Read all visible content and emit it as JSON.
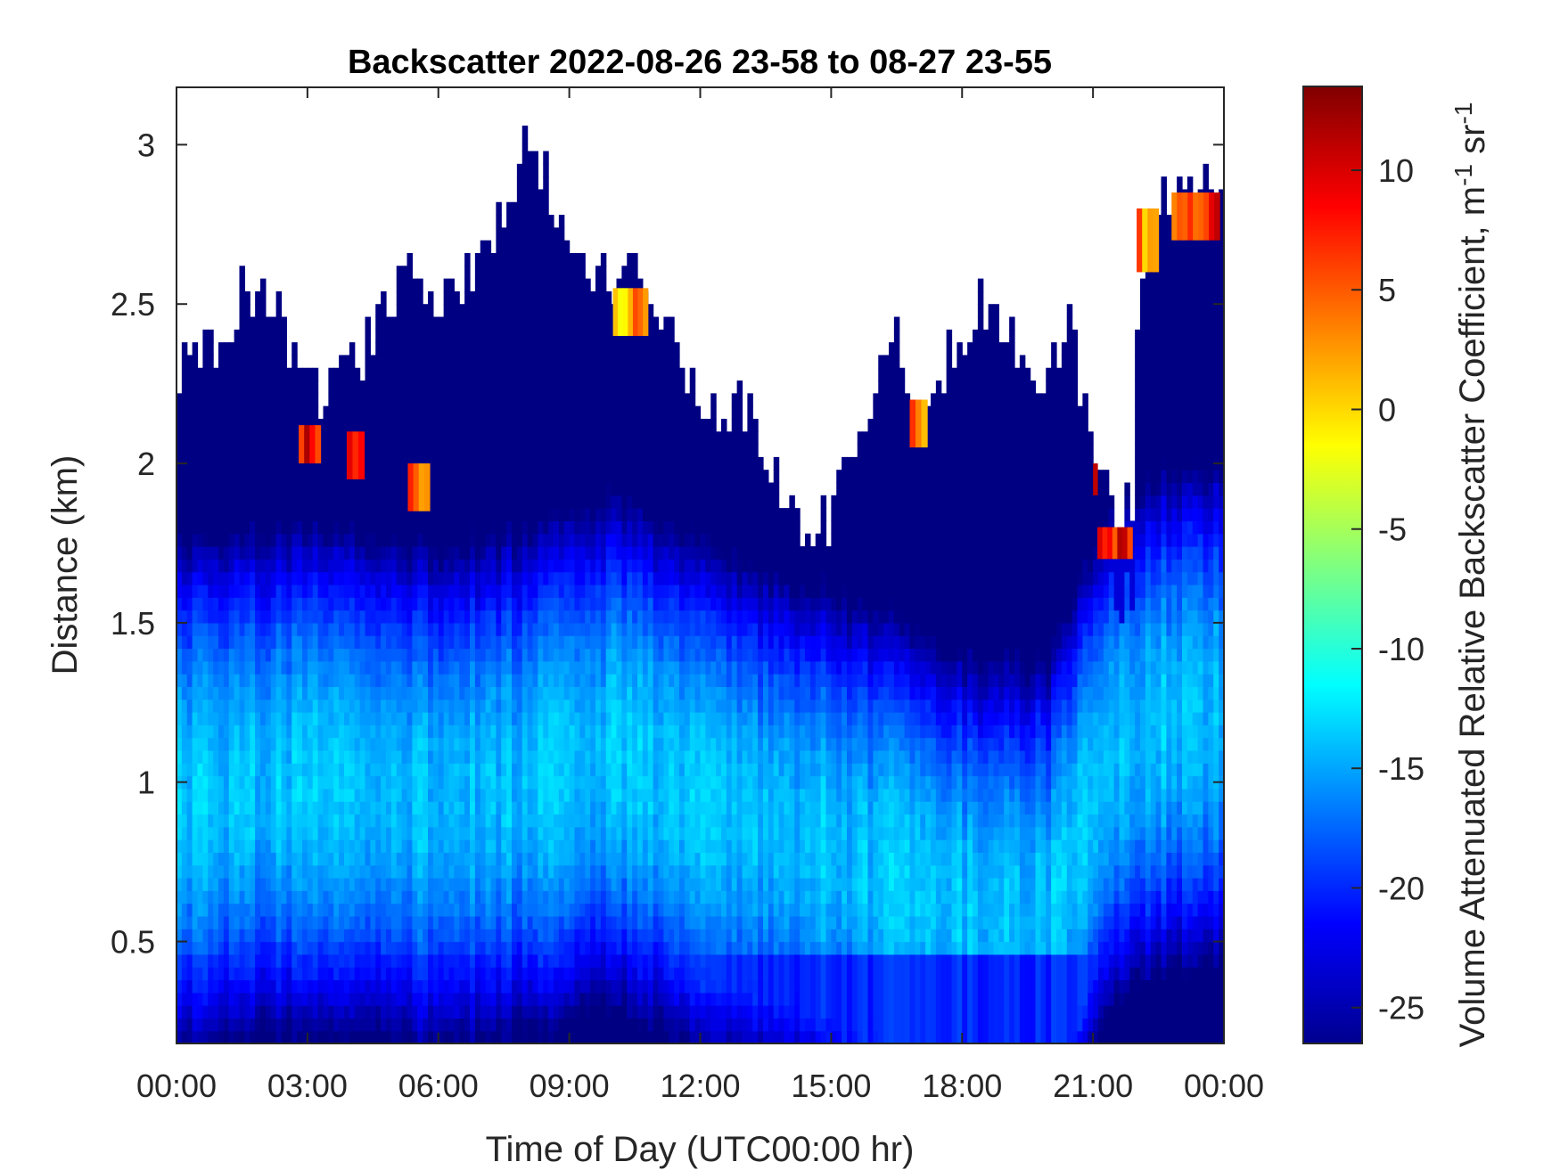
{
  "chart_data": {
    "type": "heatmap",
    "title": "Backscatter 2022-08-26 23-58 to 08-27 23-55",
    "xlabel": "Time of Day (UTC00:00 hr)",
    "ylabel": "Distance (km)",
    "colorbar_label": "Volume Attenuated Relative Backscatter Coefficient, m",
    "colorbar_unit_suffix": "sr",
    "colorbar_exponent": "-1",
    "x_ticks": [
      {
        "hour": 0,
        "label": "00:00"
      },
      {
        "hour": 3,
        "label": "03:00"
      },
      {
        "hour": 6,
        "label": "06:00"
      },
      {
        "hour": 9,
        "label": "09:00"
      },
      {
        "hour": 12,
        "label": "12:00"
      },
      {
        "hour": 15,
        "label": "15:00"
      },
      {
        "hour": 18,
        "label": "18:00"
      },
      {
        "hour": 21,
        "label": "21:00"
      },
      {
        "hour": 24,
        "label": "00:00"
      }
    ],
    "y_ticks": [
      {
        "value": 0.5,
        "label": "0.5"
      },
      {
        "value": 1.0,
        "label": "1"
      },
      {
        "value": 1.5,
        "label": "1.5"
      },
      {
        "value": 2.0,
        "label": "2"
      },
      {
        "value": 2.5,
        "label": "2.5"
      },
      {
        "value": 3.0,
        "label": "3"
      }
    ],
    "colorbar_ticks": [
      {
        "value": 10,
        "label": "10"
      },
      {
        "value": 5,
        "label": "5"
      },
      {
        "value": 0,
        "label": "0"
      },
      {
        "value": -5,
        "label": "-5"
      },
      {
        "value": -10,
        "label": "-10"
      },
      {
        "value": -15,
        "label": "-15"
      },
      {
        "value": -20,
        "label": "-20"
      },
      {
        "value": -25,
        "label": "-25"
      }
    ],
    "xlim_hours": [
      0,
      24
    ],
    "ylim_km": [
      0.18,
      3.18
    ],
    "clim": [
      -26.5,
      13.5
    ],
    "colormap": "jet",
    "grid": false,
    "signal_top_km": [
      [
        0.0,
        2.3
      ],
      [
        0.5,
        2.3
      ],
      [
        1.0,
        2.4
      ],
      [
        1.5,
        2.55
      ],
      [
        2.0,
        2.55
      ],
      [
        2.5,
        2.4
      ],
      [
        3.0,
        2.25
      ],
      [
        3.5,
        2.2
      ],
      [
        4.0,
        2.3
      ],
      [
        4.5,
        2.4
      ],
      [
        5.0,
        2.55
      ],
      [
        5.5,
        2.6
      ],
      [
        6.0,
        2.5
      ],
      [
        6.5,
        2.55
      ],
      [
        7.0,
        2.65
      ],
      [
        7.5,
        2.8
      ],
      [
        8.0,
        3.0
      ],
      [
        8.5,
        2.9
      ],
      [
        9.0,
        2.75
      ],
      [
        9.5,
        2.6
      ],
      [
        10.0,
        2.55
      ],
      [
        10.5,
        2.6
      ],
      [
        11.0,
        2.45
      ],
      [
        11.5,
        2.35
      ],
      [
        12.0,
        2.2
      ],
      [
        12.5,
        2.1
      ],
      [
        13.0,
        2.2
      ],
      [
        13.5,
        2.05
      ],
      [
        14.0,
        1.85
      ],
      [
        14.5,
        1.7
      ],
      [
        15.0,
        1.85
      ],
      [
        15.5,
        2.05
      ],
      [
        16.0,
        2.2
      ],
      [
        16.5,
        2.4
      ],
      [
        17.0,
        2.15
      ],
      [
        17.5,
        2.3
      ],
      [
        18.0,
        2.4
      ],
      [
        18.5,
        2.5
      ],
      [
        19.0,
        2.4
      ],
      [
        19.5,
        2.3
      ],
      [
        20.0,
        2.3
      ],
      [
        20.5,
        2.4
      ],
      [
        21.0,
        2.0
      ],
      [
        21.5,
        1.85
      ],
      [
        21.9,
        1.85
      ],
      [
        22.0,
        2.45
      ],
      [
        22.5,
        2.85
      ],
      [
        23.0,
        2.85
      ],
      [
        23.5,
        2.85
      ],
      [
        24.0,
        2.85
      ]
    ],
    "cyan_band_center_km": [
      [
        0,
        0.95
      ],
      [
        2,
        1.0
      ],
      [
        4,
        1.0
      ],
      [
        6,
        0.95
      ],
      [
        8,
        1.0
      ],
      [
        10,
        1.1
      ],
      [
        12,
        0.95
      ],
      [
        14,
        0.85
      ],
      [
        16,
        0.75
      ],
      [
        18,
        0.6
      ],
      [
        20,
        0.6
      ],
      [
        21.5,
        1.1
      ],
      [
        23,
        1.2
      ],
      [
        24,
        1.2
      ]
    ],
    "cloud_layers": [
      {
        "hour_start": 2.8,
        "hour_end": 3.3,
        "km_bottom": 2.0,
        "km_top": 2.12,
        "value": 8
      },
      {
        "hour_start": 3.9,
        "hour_end": 4.3,
        "km_bottom": 1.95,
        "km_top": 2.1,
        "value": 7
      },
      {
        "hour_start": 5.3,
        "hour_end": 5.8,
        "km_bottom": 1.85,
        "km_top": 2.0,
        "value": 6
      },
      {
        "hour_start": 10.0,
        "hour_end": 10.8,
        "km_bottom": 2.4,
        "km_top": 2.55,
        "value": 2
      },
      {
        "hour_start": 16.8,
        "hour_end": 17.2,
        "km_bottom": 2.05,
        "km_top": 2.2,
        "value": 4
      },
      {
        "hour_start": 21.0,
        "hour_end": 21.1,
        "km_bottom": 1.9,
        "km_top": 2.0,
        "value": 7
      },
      {
        "hour_start": 21.1,
        "hour_end": 21.9,
        "km_bottom": 1.7,
        "km_top": 1.8,
        "value": 8
      },
      {
        "hour_start": 22.0,
        "hour_end": 22.5,
        "km_bottom": 2.6,
        "km_top": 2.8,
        "value": 3
      },
      {
        "hour_start": 22.8,
        "hour_end": 23.9,
        "km_bottom": 2.7,
        "km_top": 2.85,
        "value": 7
      }
    ]
  }
}
